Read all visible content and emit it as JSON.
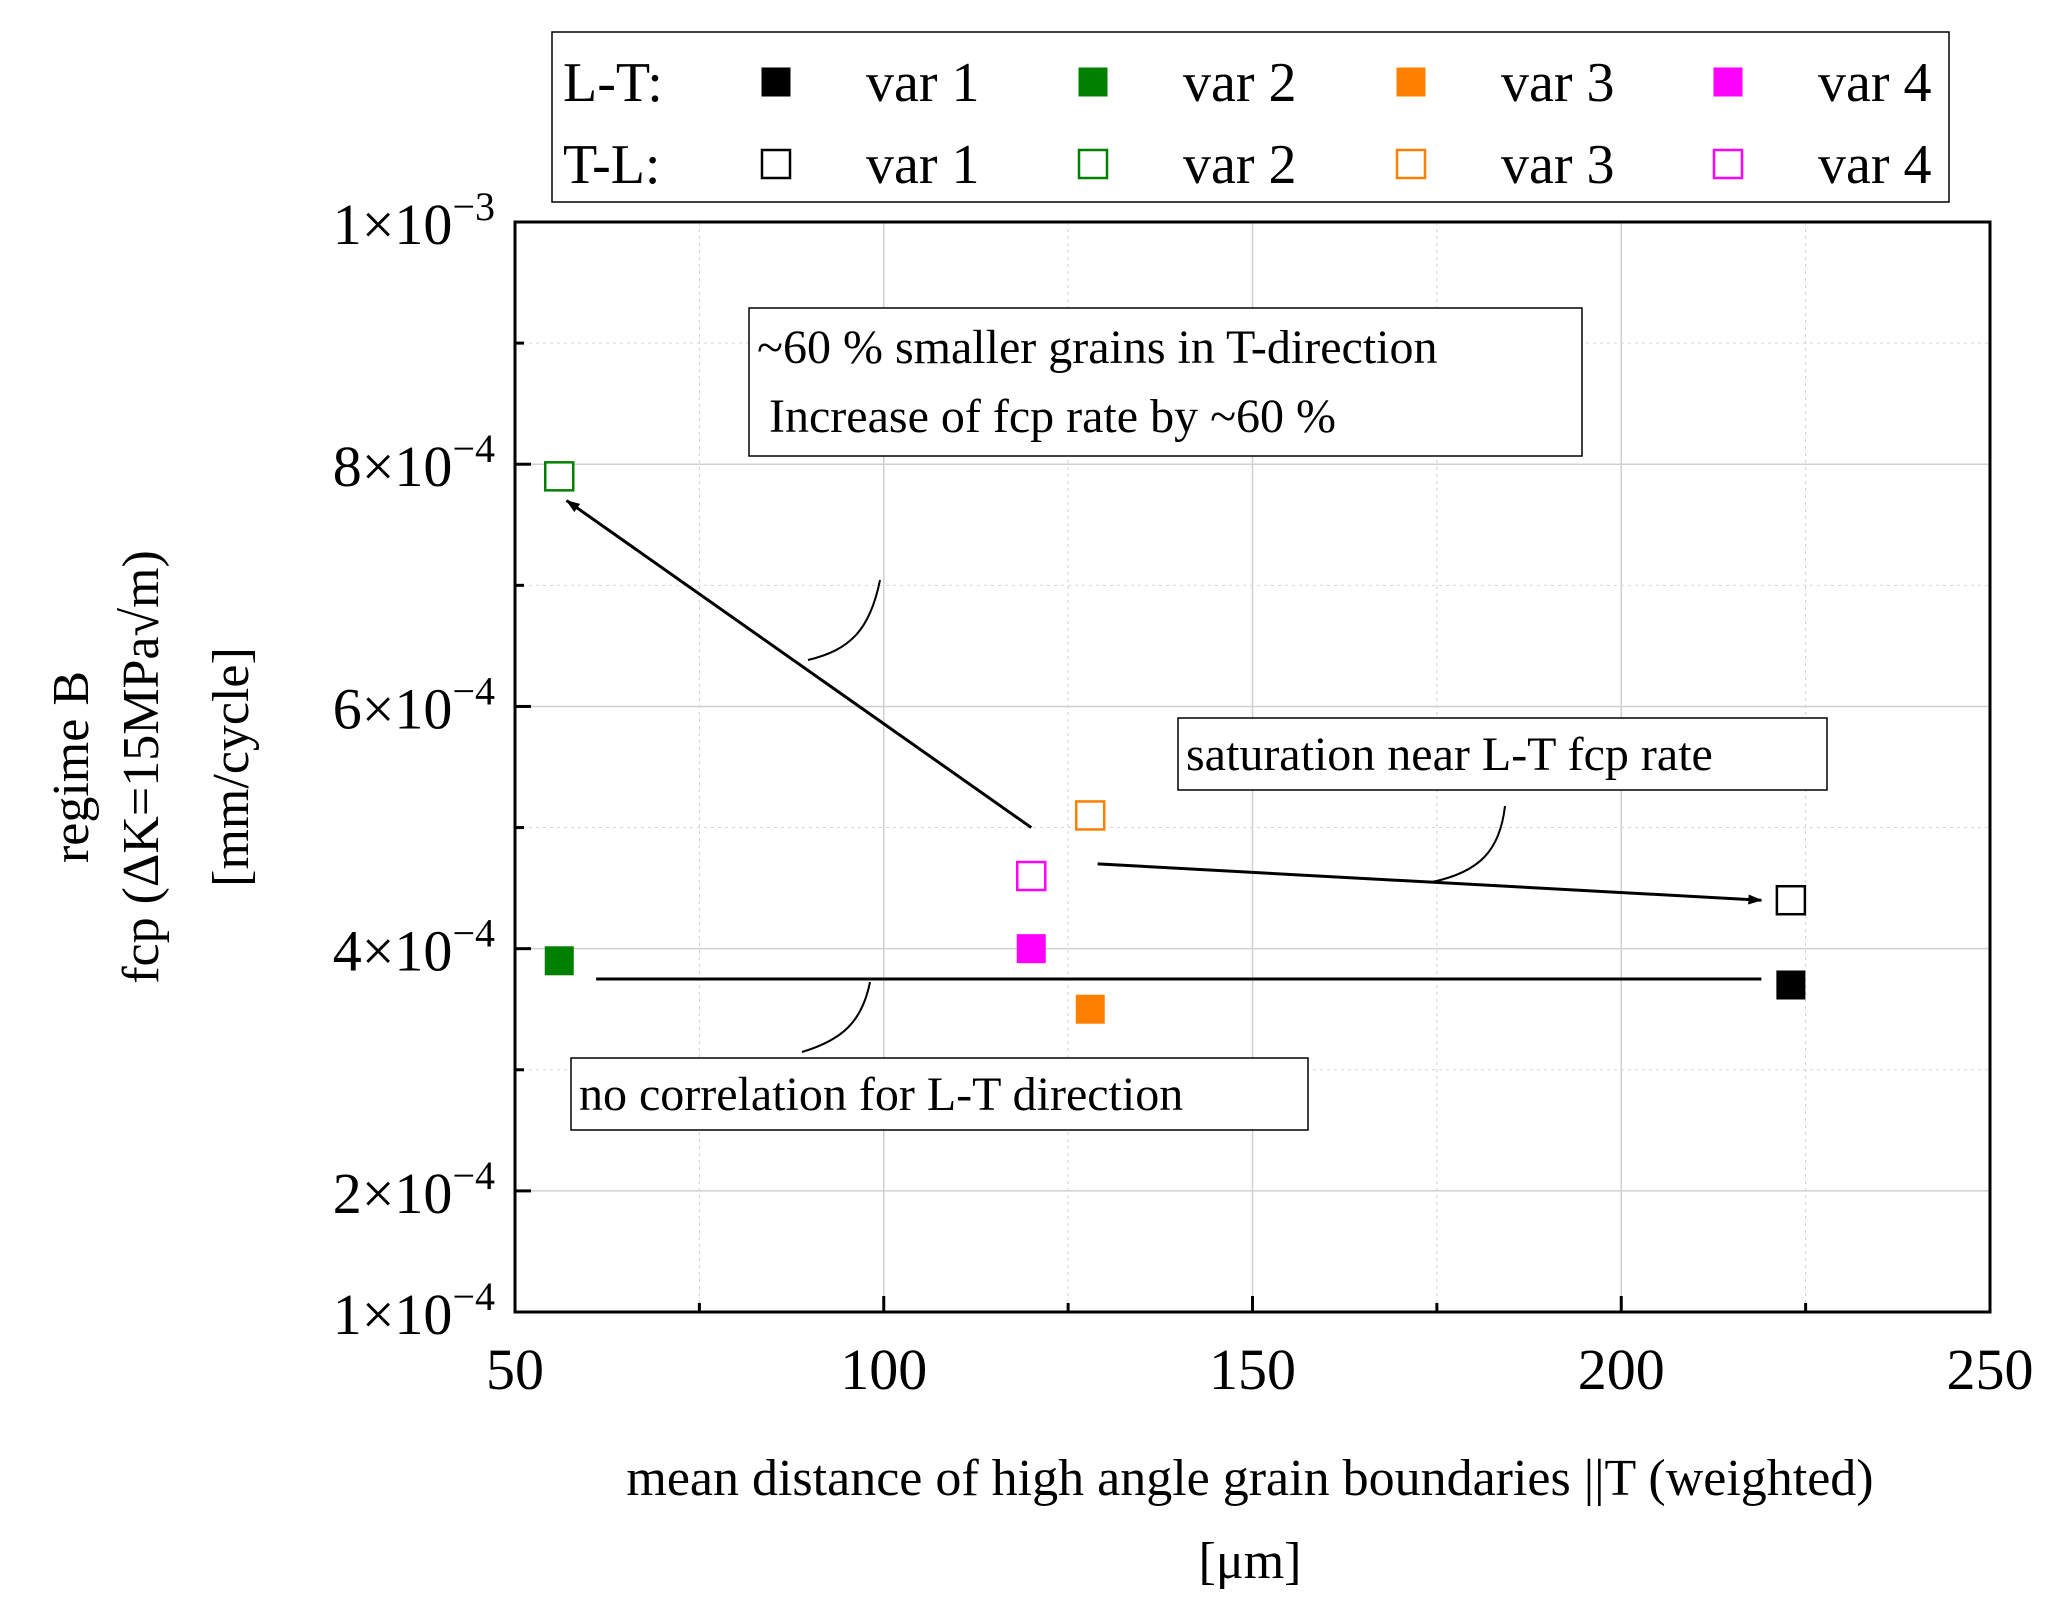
{
  "chart_data": {
    "type": "scatter",
    "title": "",
    "xlabel": "mean distance of high angle grain boundaries ||T (weighted)",
    "xlabel_unit": "[μm]",
    "ylabel_line1": "regime B",
    "ylabel_line2": "fcp (ΔK=15MPa√m)",
    "ylabel_line3": "[mm/cycle]",
    "xlim": [
      50,
      250
    ],
    "ylim": [
      0.0001,
      0.001
    ],
    "grid": true,
    "x_ticks": [
      {
        "value": 50,
        "label": "50"
      },
      {
        "value": 100,
        "label": "100"
      },
      {
        "value": 150,
        "label": "150"
      },
      {
        "value": 200,
        "label": "200"
      },
      {
        "value": 250,
        "label": "250"
      }
    ],
    "y_ticks": [
      {
        "value": 0.0001,
        "mant": "1×10",
        "exp": "−4"
      },
      {
        "value": 0.0002,
        "mant": "2×10",
        "exp": "−4"
      },
      {
        "value": 0.0004,
        "mant": "4×10",
        "exp": "−4"
      },
      {
        "value": 0.0006,
        "mant": "6×10",
        "exp": "−4"
      },
      {
        "value": 0.0008,
        "mant": "8×10",
        "exp": "−4"
      },
      {
        "value": 0.001,
        "mant": "1×10",
        "exp": "−3"
      }
    ],
    "legend": {
      "position": "top",
      "rows": [
        {
          "label": "L-T:",
          "filled": true
        },
        {
          "label": "T-L:",
          "filled": false
        }
      ],
      "variants": [
        {
          "name": "var 1",
          "color": "#000000"
        },
        {
          "name": "var 2",
          "color": "#008000"
        },
        {
          "name": "var 3",
          "color": "#ff8000"
        },
        {
          "name": "var 4",
          "color": "#ff00ff"
        }
      ]
    },
    "series": [
      {
        "name": "L-T var 1",
        "orientation": "L-T",
        "filled": true,
        "color": "#000000",
        "x": 223,
        "y": 0.00037
      },
      {
        "name": "L-T var 2",
        "orientation": "L-T",
        "filled": true,
        "color": "#008000",
        "x": 56,
        "y": 0.00039
      },
      {
        "name": "L-T var 3",
        "orientation": "L-T",
        "filled": true,
        "color": "#ff8000",
        "x": 128,
        "y": 0.00035
      },
      {
        "name": "L-T var 4",
        "orientation": "L-T",
        "filled": true,
        "color": "#ff00ff",
        "x": 120,
        "y": 0.0004
      },
      {
        "name": "T-L var 1",
        "orientation": "T-L",
        "filled": false,
        "color": "#000000",
        "x": 223,
        "y": 0.00044
      },
      {
        "name": "T-L var 2",
        "orientation": "T-L",
        "filled": false,
        "color": "#008000",
        "x": 56,
        "y": 0.00079
      },
      {
        "name": "T-L var 3",
        "orientation": "T-L",
        "filled": false,
        "color": "#ff8000",
        "x": 128,
        "y": 0.00051
      },
      {
        "name": "T-L var 4",
        "orientation": "T-L",
        "filled": false,
        "color": "#ff00ff",
        "x": 120,
        "y": 0.00046
      }
    ],
    "annotations": [
      {
        "id": "grains",
        "lines": [
          "~60 % smaller grains in T-direction",
          " Increase of fcp rate by ~60 %"
        ]
      },
      {
        "id": "saturation",
        "lines": [
          "saturation near L-T fcp rate"
        ]
      },
      {
        "id": "nocorr",
        "lines": [
          "no correlation for L-T direction"
        ]
      }
    ],
    "arrows": [
      {
        "from": [
          120,
          0.0005
        ],
        "to": [
          57,
          0.00077
        ],
        "head": true
      },
      {
        "from": [
          129,
          0.00047
        ],
        "to": [
          219,
          0.00044
        ],
        "head": true
      },
      {
        "from": [
          61,
          0.000375
        ],
        "to": [
          219,
          0.000375
        ],
        "head": false
      }
    ]
  }
}
